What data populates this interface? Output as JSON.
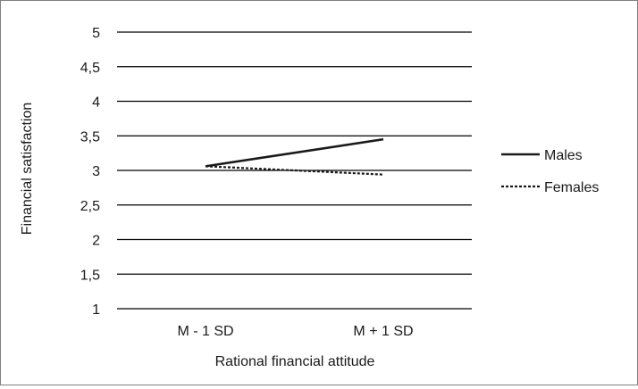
{
  "chart_data": {
    "type": "line",
    "categories": [
      "M - 1 SD",
      "M + 1 SD"
    ],
    "series": [
      {
        "name": "Males",
        "values": [
          3.06,
          3.45
        ],
        "style": "solid",
        "color": "#1a1a1a"
      },
      {
        "name": "Females",
        "values": [
          3.06,
          2.94
        ],
        "style": "dashed",
        "color": "#1a1a1a"
      }
    ],
    "y_ticks": [
      "1",
      "1,5",
      "2",
      "2,5",
      "3",
      "3,5",
      "4",
      "4,5",
      "5"
    ],
    "y_tick_values": [
      1,
      1.5,
      2,
      2.5,
      3,
      3.5,
      4,
      4.5,
      5
    ],
    "xlabel": "Rational financial attitude",
    "ylabel": "Financial satisfaction",
    "ylim": [
      1,
      5
    ],
    "grid": true,
    "legend_position": "right"
  }
}
